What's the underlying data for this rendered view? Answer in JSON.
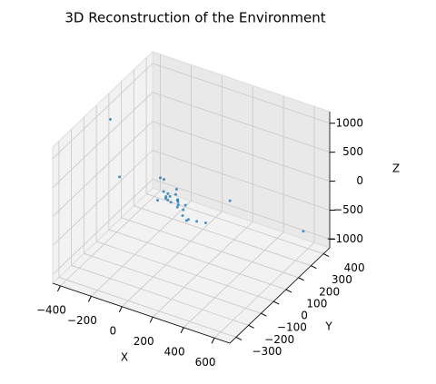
{
  "chart_data": {
    "type": "scatter3d",
    "title": "3D Reconstruction of the Environment",
    "xlabel": "X",
    "ylabel": "Y",
    "zlabel": "Z",
    "color": "#1f77b4",
    "x": [
      0,
      20,
      -30,
      50,
      40,
      10,
      80,
      100,
      60,
      -20,
      120,
      30,
      -60,
      -100,
      150,
      200,
      180,
      250,
      -400,
      650,
      320,
      300,
      -300,
      70,
      90,
      30,
      -10,
      130
    ],
    "y": [
      0,
      10,
      20,
      -20,
      30,
      -10,
      0,
      -30,
      20,
      -40,
      10,
      50,
      60,
      80,
      -50,
      -80,
      -40,
      -60,
      50,
      300,
      120,
      -50,
      0,
      10,
      -10,
      -20,
      30,
      -20
    ],
    "z": [
      0,
      30,
      50,
      20,
      40,
      60,
      10,
      0,
      -20,
      30,
      -30,
      80,
      150,
      100,
      -60,
      -40,
      -120,
      -50,
      900,
      -600,
      0,
      -50,
      100,
      20,
      -10,
      40,
      10,
      -40
    ],
    "xlim": [
      -450,
      700
    ],
    "ylim": [
      -350,
      450
    ],
    "zlim": [
      -1150,
      1200
    ],
    "xticks": [
      {
        "value": -400,
        "label": "−400"
      },
      {
        "value": -200,
        "label": "−200"
      },
      0,
      200,
      400,
      600
    ],
    "yticks": [
      {
        "value": -300,
        "label": "−300"
      },
      {
        "value": -200,
        "label": "−200"
      },
      {
        "value": -100,
        "label": "−100"
      },
      0,
      100,
      200,
      300,
      400
    ],
    "zticks": [
      {
        "value": -1000,
        "label": "−1000"
      },
      {
        "value": -500,
        "label": "−500"
      },
      0,
      500,
      1000
    ],
    "grid": true
  }
}
